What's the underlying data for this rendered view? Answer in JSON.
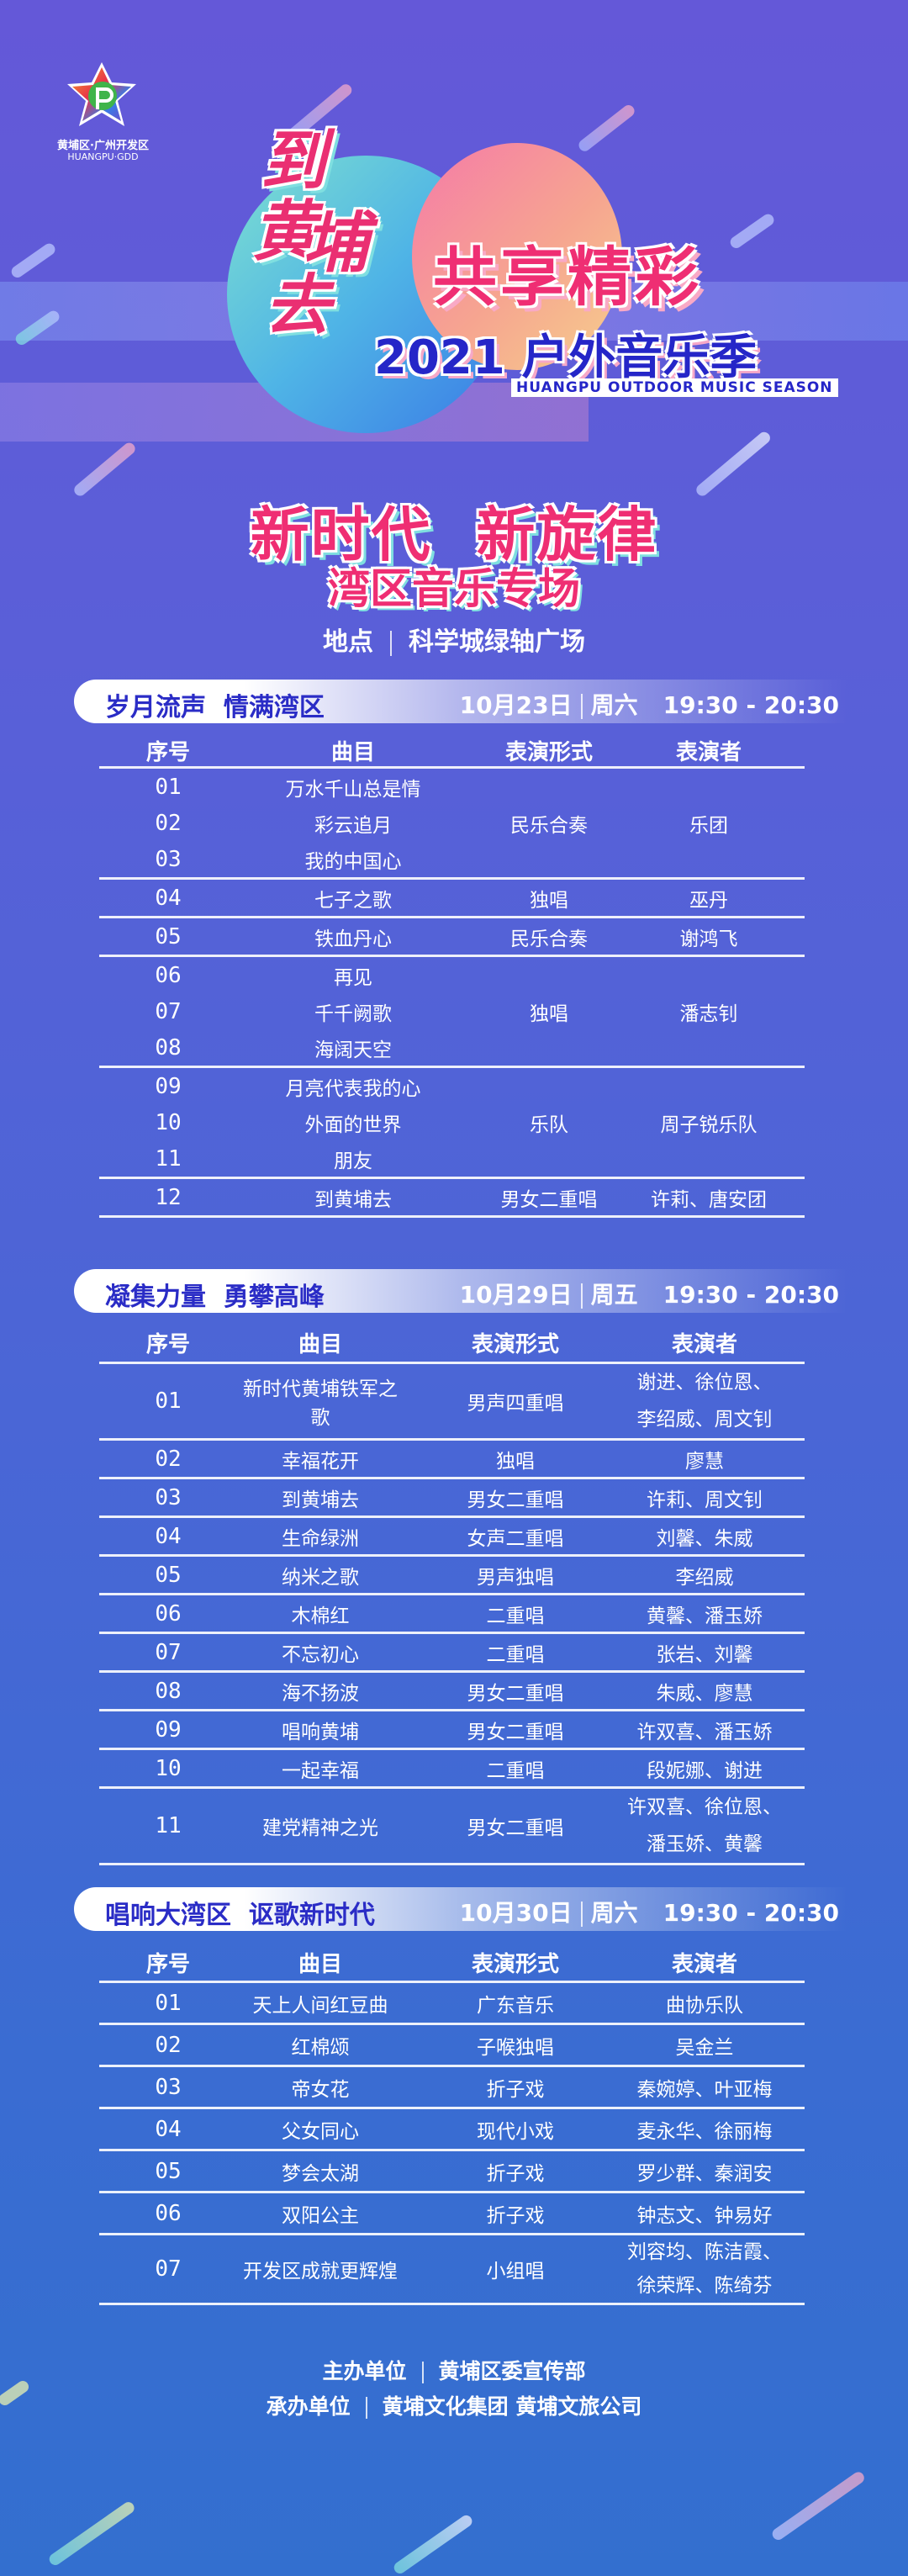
{
  "logo": {
    "cn": "黄埔区·广州开发区",
    "en": "HUANGPU·GDD"
  },
  "hero": {
    "calligraphy": [
      "到",
      "黄",
      "埔",
      "去"
    ],
    "title": "共享精彩",
    "subtitle": "2021 户外音乐季",
    "english": "HUANGPU OUTDOOR MUSIC SEASON"
  },
  "theme": {
    "line1": "新时代  新旋律",
    "line2": "湾区音乐专场"
  },
  "venue": {
    "label": "地点",
    "value": "科学城绿轴广场"
  },
  "colors": {
    "accent_pink": "#ef2e73",
    "title_blue": "#2a2cc6",
    "bg_top": "#6458d8",
    "bg_bottom": "#336fcf"
  },
  "headers": [
    "序号",
    "曲目",
    "表演形式",
    "表演者"
  ],
  "sections": [
    {
      "title": "岁月流声  情满湾区",
      "date": "10月23日",
      "weekday": "周六",
      "time": "19:30 - 20:30",
      "groups": [
        {
          "rows": [
            {
              "no": "01",
              "title": "万水千山总是情"
            },
            {
              "no": "02",
              "title": "彩云追月"
            },
            {
              "no": "03",
              "title": "我的中国心"
            }
          ],
          "form": "民乐合奏",
          "performer": [
            "乐团"
          ]
        },
        {
          "rows": [
            {
              "no": "04",
              "title": "七子之歌"
            }
          ],
          "form": "独唱",
          "performer": [
            "巫丹"
          ]
        },
        {
          "rows": [
            {
              "no": "05",
              "title": "铁血丹心"
            }
          ],
          "form": "民乐合奏",
          "performer": [
            "谢鸿飞"
          ]
        },
        {
          "rows": [
            {
              "no": "06",
              "title": "再见"
            },
            {
              "no": "07",
              "title": "千千阙歌"
            },
            {
              "no": "08",
              "title": "海阔天空"
            }
          ],
          "form": "独唱",
          "performer": [
            "潘志钊"
          ]
        },
        {
          "rows": [
            {
              "no": "09",
              "title": "月亮代表我的心"
            },
            {
              "no": "10",
              "title": "外面的世界"
            },
            {
              "no": "11",
              "title": "朋友"
            }
          ],
          "form": "乐队",
          "performer": [
            "周子锐乐队"
          ]
        },
        {
          "rows": [
            {
              "no": "12",
              "title": "到黄埔去"
            }
          ],
          "form": "男女二重唱",
          "performer": [
            "许莉、唐安团"
          ]
        }
      ]
    },
    {
      "title": "凝集力量  勇攀高峰",
      "date": "10月29日",
      "weekday": "周五",
      "time": "19:30 - 20:30",
      "groups": [
        {
          "rows": [
            {
              "no": "01",
              "title": "新时代黄埔铁军之歌"
            }
          ],
          "form": "男声四重唱",
          "performer": [
            "谢进、徐位恩、",
            "李绍威、周文钊"
          ]
        },
        {
          "rows": [
            {
              "no": "02",
              "title": "幸福花开"
            }
          ],
          "form": "独唱",
          "performer": [
            "廖慧"
          ]
        },
        {
          "rows": [
            {
              "no": "03",
              "title": "到黄埔去"
            }
          ],
          "form": "男女二重唱",
          "performer": [
            "许莉、周文钊"
          ]
        },
        {
          "rows": [
            {
              "no": "04",
              "title": "生命绿洲"
            }
          ],
          "form": "女声二重唱",
          "performer": [
            "刘馨、朱威"
          ]
        },
        {
          "rows": [
            {
              "no": "05",
              "title": "纳米之歌"
            }
          ],
          "form": "男声独唱",
          "performer": [
            "李绍威"
          ]
        },
        {
          "rows": [
            {
              "no": "06",
              "title": "木棉红"
            }
          ],
          "form": "二重唱",
          "performer": [
            "黄馨、潘玉娇"
          ]
        },
        {
          "rows": [
            {
              "no": "07",
              "title": "不忘初心"
            }
          ],
          "form": "二重唱",
          "performer": [
            "张岩、刘馨"
          ]
        },
        {
          "rows": [
            {
              "no": "08",
              "title": "海不扬波"
            }
          ],
          "form": "男女二重唱",
          "performer": [
            "朱威、廖慧"
          ]
        },
        {
          "rows": [
            {
              "no": "09",
              "title": "唱响黄埔"
            }
          ],
          "form": "男女二重唱",
          "performer": [
            "许双喜、潘玉娇"
          ]
        },
        {
          "rows": [
            {
              "no": "10",
              "title": "一起幸福"
            }
          ],
          "form": "二重唱",
          "performer": [
            "段妮娜、谢进"
          ]
        },
        {
          "rows": [
            {
              "no": "11",
              "title": "建党精神之光"
            }
          ],
          "form": "男女二重唱",
          "performer": [
            "许双喜、徐位恩、",
            "潘玉娇、黄馨"
          ]
        }
      ]
    },
    {
      "title": "唱响大湾区  讴歌新时代",
      "date": "10月30日",
      "weekday": "周六",
      "time": "19:30 - 20:30",
      "groups": [
        {
          "rows": [
            {
              "no": "01",
              "title": "天上人间红豆曲"
            }
          ],
          "form": "广东音乐",
          "performer": [
            "曲协乐队"
          ]
        },
        {
          "rows": [
            {
              "no": "02",
              "title": "红棉颂"
            }
          ],
          "form": "子喉独唱",
          "performer": [
            "吴金兰"
          ]
        },
        {
          "rows": [
            {
              "no": "03",
              "title": "帝女花"
            }
          ],
          "form": "折子戏",
          "performer": [
            "秦婉婷、叶亚梅"
          ]
        },
        {
          "rows": [
            {
              "no": "04",
              "title": "父女同心"
            }
          ],
          "form": "现代小戏",
          "performer": [
            "麦永华、徐丽梅"
          ]
        },
        {
          "rows": [
            {
              "no": "05",
              "title": "梦会太湖"
            }
          ],
          "form": "折子戏",
          "performer": [
            "罗少群、秦润安"
          ]
        },
        {
          "rows": [
            {
              "no": "06",
              "title": "双阳公主"
            }
          ],
          "form": "折子戏",
          "performer": [
            "钟志文、钟易好"
          ]
        },
        {
          "rows": [
            {
              "no": "07",
              "title": "开发区成就更辉煌"
            }
          ],
          "form": "小组唱",
          "performer": [
            "刘容均、陈洁霞、",
            "徐荣辉、陈绮芬"
          ]
        }
      ]
    }
  ],
  "footer": {
    "host_label": "主办单位",
    "host": "黄埔区委宣传部",
    "organizer_label": "承办单位",
    "organizer": "黄埔文化集团 黄埔文旅公司"
  }
}
